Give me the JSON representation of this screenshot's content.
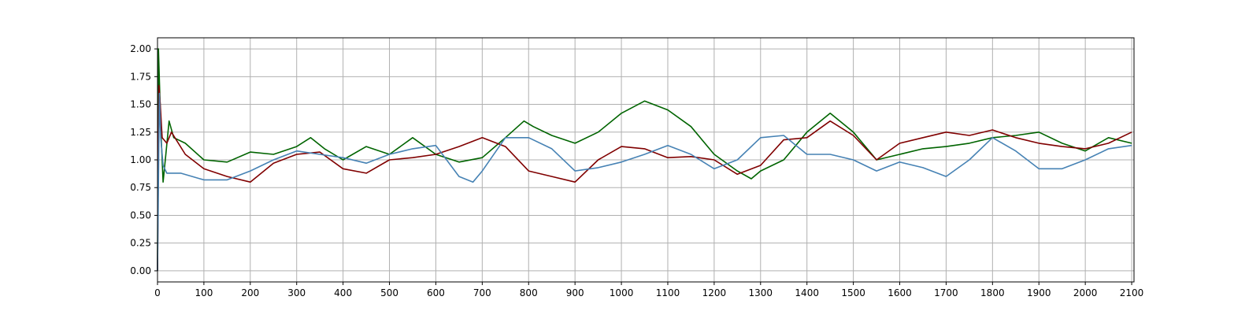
{
  "chart_data": {
    "type": "line",
    "xlim": [
      0,
      2105
    ],
    "ylim": [
      -0.1,
      2.1
    ],
    "xticks": [
      0,
      100,
      200,
      300,
      400,
      500,
      600,
      700,
      800,
      900,
      1000,
      1100,
      1200,
      1300,
      1400,
      1500,
      1600,
      1700,
      1800,
      1900,
      2000,
      2100
    ],
    "yticks": [
      "0.00",
      "0.25",
      "0.50",
      "0.75",
      "1.00",
      "1.25",
      "1.50",
      "1.75",
      "2.00"
    ],
    "grid": true,
    "colors": {
      "green": "#006400",
      "darkred": "#800000",
      "steelblue": "#4682b4"
    },
    "series": [
      {
        "color": "#006400",
        "points": [
          [
            0,
            0.0
          ],
          [
            2,
            2.0
          ],
          [
            5,
            1.6
          ],
          [
            8,
            1.2
          ],
          [
            12,
            0.8
          ],
          [
            18,
            1.05
          ],
          [
            25,
            1.35
          ],
          [
            35,
            1.2
          ],
          [
            60,
            1.15
          ],
          [
            100,
            1.0
          ],
          [
            150,
            0.98
          ],
          [
            200,
            1.07
          ],
          [
            250,
            1.05
          ],
          [
            300,
            1.12
          ],
          [
            330,
            1.2
          ],
          [
            360,
            1.1
          ],
          [
            400,
            1.0
          ],
          [
            450,
            1.12
          ],
          [
            500,
            1.05
          ],
          [
            550,
            1.2
          ],
          [
            600,
            1.05
          ],
          [
            650,
            0.98
          ],
          [
            700,
            1.02
          ],
          [
            750,
            1.2
          ],
          [
            790,
            1.35
          ],
          [
            810,
            1.3
          ],
          [
            850,
            1.22
          ],
          [
            900,
            1.15
          ],
          [
            950,
            1.25
          ],
          [
            1000,
            1.42
          ],
          [
            1050,
            1.53
          ],
          [
            1100,
            1.45
          ],
          [
            1150,
            1.3
          ],
          [
            1200,
            1.05
          ],
          [
            1250,
            0.9
          ],
          [
            1280,
            0.83
          ],
          [
            1300,
            0.9
          ],
          [
            1350,
            1.0
          ],
          [
            1400,
            1.25
          ],
          [
            1450,
            1.42
          ],
          [
            1500,
            1.25
          ],
          [
            1550,
            1.0
          ],
          [
            1600,
            1.05
          ],
          [
            1650,
            1.1
          ],
          [
            1700,
            1.12
          ],
          [
            1750,
            1.15
          ],
          [
            1800,
            1.2
          ],
          [
            1850,
            1.22
          ],
          [
            1900,
            1.25
          ],
          [
            1950,
            1.15
          ],
          [
            2000,
            1.08
          ],
          [
            2050,
            1.2
          ],
          [
            2100,
            1.15
          ]
        ]
      },
      {
        "color": "#800000",
        "points": [
          [
            0,
            0.0
          ],
          [
            3,
            1.67
          ],
          [
            6,
            1.5
          ],
          [
            10,
            1.2
          ],
          [
            20,
            1.15
          ],
          [
            30,
            1.25
          ],
          [
            60,
            1.05
          ],
          [
            100,
            0.92
          ],
          [
            150,
            0.85
          ],
          [
            200,
            0.8
          ],
          [
            250,
            0.97
          ],
          [
            300,
            1.05
          ],
          [
            350,
            1.07
          ],
          [
            400,
            0.92
          ],
          [
            450,
            0.88
          ],
          [
            500,
            1.0
          ],
          [
            550,
            1.02
          ],
          [
            600,
            1.05
          ],
          [
            650,
            1.12
          ],
          [
            700,
            1.2
          ],
          [
            750,
            1.12
          ],
          [
            800,
            0.9
          ],
          [
            850,
            0.85
          ],
          [
            900,
            0.8
          ],
          [
            950,
            1.0
          ],
          [
            1000,
            1.12
          ],
          [
            1050,
            1.1
          ],
          [
            1100,
            1.02
          ],
          [
            1150,
            1.03
          ],
          [
            1200,
            1.0
          ],
          [
            1250,
            0.87
          ],
          [
            1300,
            0.95
          ],
          [
            1350,
            1.18
          ],
          [
            1400,
            1.2
          ],
          [
            1450,
            1.35
          ],
          [
            1500,
            1.22
          ],
          [
            1550,
            1.0
          ],
          [
            1600,
            1.15
          ],
          [
            1650,
            1.2
          ],
          [
            1700,
            1.25
          ],
          [
            1750,
            1.22
          ],
          [
            1800,
            1.27
          ],
          [
            1850,
            1.2
          ],
          [
            1900,
            1.15
          ],
          [
            1950,
            1.12
          ],
          [
            2000,
            1.1
          ],
          [
            2050,
            1.15
          ],
          [
            2100,
            1.25
          ]
        ]
      },
      {
        "color": "#4682b4",
        "points": [
          [
            0,
            0.0
          ],
          [
            4,
            1.6
          ],
          [
            7,
            1.2
          ],
          [
            12,
            0.95
          ],
          [
            20,
            0.88
          ],
          [
            50,
            0.88
          ],
          [
            100,
            0.82
          ],
          [
            150,
            0.82
          ],
          [
            200,
            0.9
          ],
          [
            250,
            1.0
          ],
          [
            300,
            1.08
          ],
          [
            350,
            1.05
          ],
          [
            400,
            1.02
          ],
          [
            450,
            0.97
          ],
          [
            500,
            1.05
          ],
          [
            550,
            1.1
          ],
          [
            600,
            1.13
          ],
          [
            650,
            0.85
          ],
          [
            680,
            0.8
          ],
          [
            700,
            0.9
          ],
          [
            750,
            1.2
          ],
          [
            800,
            1.2
          ],
          [
            850,
            1.1
          ],
          [
            900,
            0.9
          ],
          [
            950,
            0.93
          ],
          [
            1000,
            0.98
          ],
          [
            1050,
            1.05
          ],
          [
            1100,
            1.13
          ],
          [
            1150,
            1.05
          ],
          [
            1200,
            0.92
          ],
          [
            1250,
            1.0
          ],
          [
            1300,
            1.2
          ],
          [
            1350,
            1.22
          ],
          [
            1400,
            1.05
          ],
          [
            1450,
            1.05
          ],
          [
            1500,
            1.0
          ],
          [
            1550,
            0.9
          ],
          [
            1600,
            0.98
          ],
          [
            1650,
            0.93
          ],
          [
            1700,
            0.85
          ],
          [
            1750,
            1.0
          ],
          [
            1800,
            1.2
          ],
          [
            1850,
            1.08
          ],
          [
            1900,
            0.92
          ],
          [
            1950,
            0.92
          ],
          [
            2000,
            1.0
          ],
          [
            2050,
            1.1
          ],
          [
            2100,
            1.13
          ]
        ]
      }
    ]
  }
}
